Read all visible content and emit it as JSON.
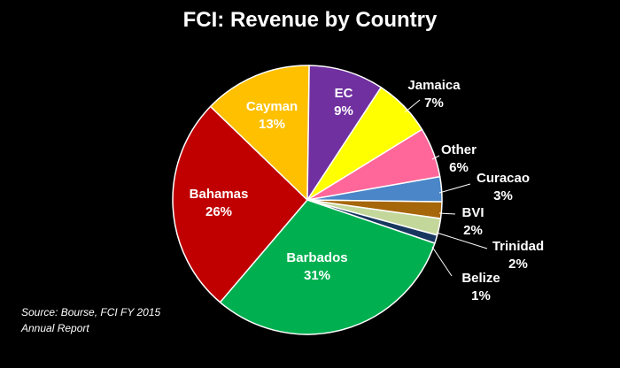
{
  "chart_data": {
    "type": "pie",
    "title": "FCI: Revenue by Country",
    "source_line1": "Source: Bourse, FCI FY 2015",
    "source_line2": "Annual Report",
    "slices": [
      {
        "name": "Barbados",
        "value": 31,
        "label": "31%",
        "color": "#00b050"
      },
      {
        "name": "Bahamas",
        "value": 26,
        "label": "26%",
        "color": "#c00000"
      },
      {
        "name": "Cayman",
        "value": 13,
        "label": "13%",
        "color": "#ffc000"
      },
      {
        "name": "EC",
        "value": 9,
        "label": "9%",
        "color": "#7030a0"
      },
      {
        "name": "Jamaica",
        "value": 7,
        "label": "7%",
        "color": "#ffff00"
      },
      {
        "name": "Other",
        "value": 6,
        "label": "6%",
        "color": "#ff6699"
      },
      {
        "name": "Curacao",
        "value": 3,
        "label": "3%",
        "color": "#4a86c8"
      },
      {
        "name": "BVI",
        "value": 2,
        "label": "2%",
        "color": "#a6660a"
      },
      {
        "name": "Trinidad",
        "value": 2,
        "label": "2%",
        "color": "#c4d79b"
      },
      {
        "name": "Belize",
        "value": 1,
        "label": "1%",
        "color": "#17375e"
      }
    ]
  }
}
